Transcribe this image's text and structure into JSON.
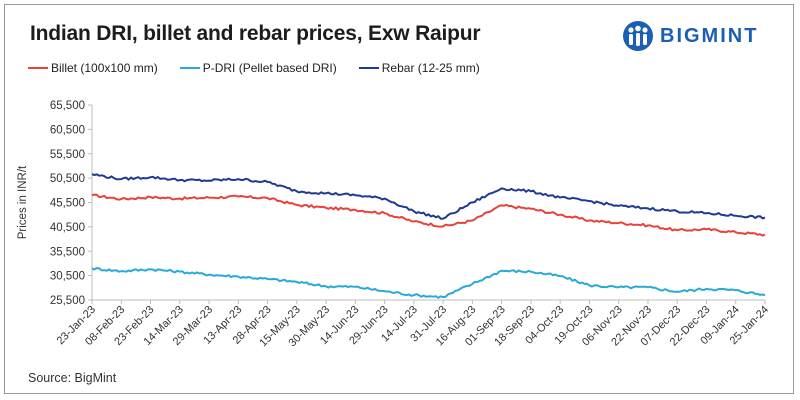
{
  "title": "Indian DRI, billet and rebar prices, Exw Raipur",
  "brand": {
    "name": "BIGMINT",
    "logo_icon": "bigmint-people-logo-icon",
    "color": "#1a5fb4"
  },
  "source": "Source: BigMint",
  "chart_data": {
    "type": "line",
    "title": "Indian DRI, billet and rebar prices, Exw Raipur",
    "xlabel": "",
    "ylabel": "Prices in INR/t",
    "ylim": [
      25500,
      65500
    ],
    "yticks": [
      25500,
      30500,
      35500,
      40500,
      45500,
      50500,
      55500,
      60500,
      65500
    ],
    "ytick_labels": [
      "25,500",
      "30,500",
      "35,500",
      "40,500",
      "45,500",
      "50,500",
      "55,500",
      "60,500",
      "65,500"
    ],
    "x": [
      "23-Jan-23",
      "08-Feb-23",
      "23-Feb-23",
      "14-Mar-23",
      "29-Mar-23",
      "13-Apr-23",
      "28-Apr-23",
      "15-May-23",
      "30-May-23",
      "14-Jun-23",
      "29-Jun-23",
      "14-Jul-23",
      "31-Jul-23",
      "16-Aug-23",
      "01-Sep-23",
      "18-Sep-23",
      "04-Oct-23",
      "19-Oct-23",
      "06-Nov-23",
      "22-Nov-23",
      "07-Dec-23",
      "22-Dec-23",
      "09-Jan-24",
      "25-Jan-24"
    ],
    "legend_position": "top-left",
    "grid": false,
    "series": [
      {
        "name": "Billet (100x100 mm)",
        "color": "#e8423a",
        "values": [
          47000,
          46200,
          46600,
          46300,
          46500,
          46700,
          46400,
          45000,
          44400,
          44000,
          43300,
          41600,
          40600,
          41800,
          44900,
          44200,
          43000,
          41800,
          41300,
          40800,
          39800,
          40000,
          39400,
          38900
        ]
      },
      {
        "name": "P-DRI (Pellet based DRI)",
        "color": "#29a9d9",
        "values": [
          32000,
          31400,
          31800,
          31300,
          30700,
          30300,
          29800,
          29200,
          28300,
          28200,
          27300,
          26500,
          26100,
          28800,
          31500,
          31300,
          30400,
          28500,
          28100,
          28100,
          27200,
          27800,
          27500,
          26500
        ]
      },
      {
        "name": "Rebar (12-25 mm)",
        "color": "#1f3a93",
        "values": [
          51300,
          50300,
          50700,
          50100,
          50000,
          50300,
          49700,
          47800,
          47400,
          47000,
          46300,
          43700,
          42200,
          45500,
          48400,
          47800,
          46500,
          45800,
          44800,
          44300,
          43700,
          43300,
          42800,
          42400
        ]
      }
    ]
  }
}
